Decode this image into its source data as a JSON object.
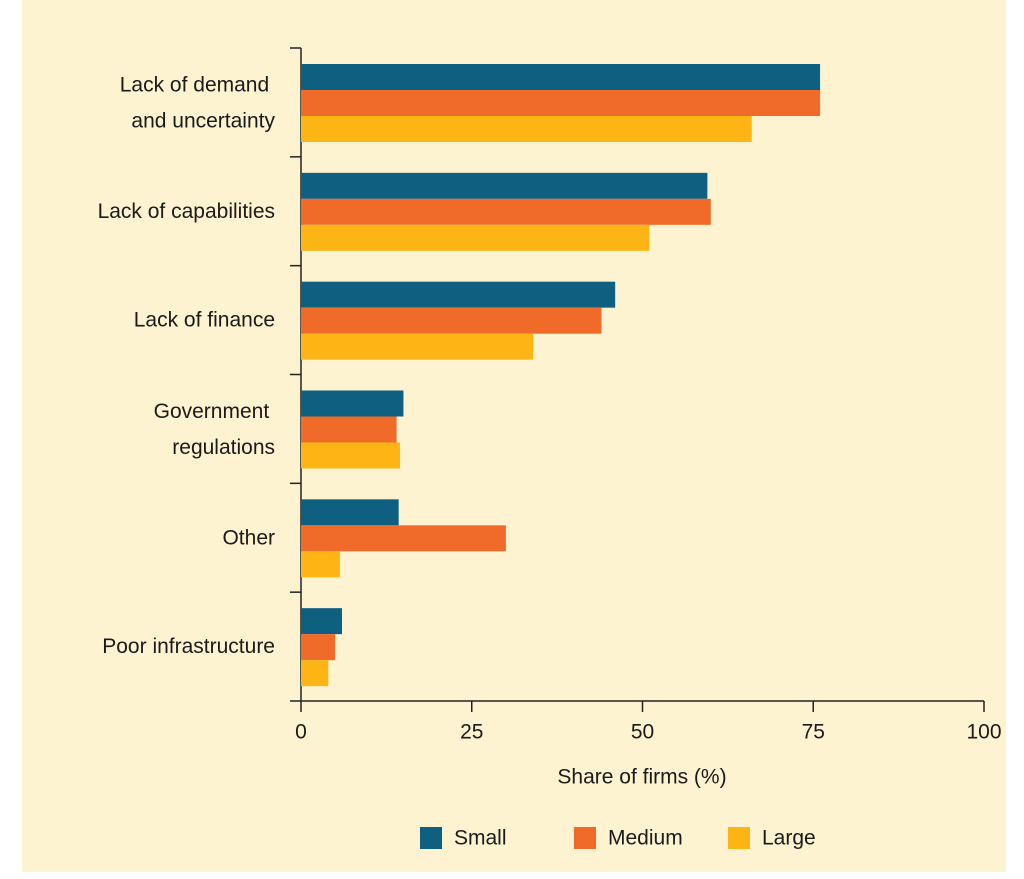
{
  "chart_data": {
    "type": "bar",
    "orientation": "horizontal",
    "categories": [
      "Lack of demand and uncertainty",
      "Lack of capabilities",
      "Lack of finance",
      "Government regulations",
      "Other",
      "Poor infrastructure"
    ],
    "series": [
      {
        "name": "Small",
        "color": "#0e5f80",
        "values": [
          76,
          59.5,
          46,
          15,
          14.3,
          6
        ]
      },
      {
        "name": "Medium",
        "color": "#f06b2a",
        "values": [
          76,
          60,
          44,
          14,
          30,
          5
        ]
      },
      {
        "name": "Large",
        "color": "#fdb515",
        "values": [
          66,
          51,
          34,
          14.5,
          5.7,
          4
        ]
      }
    ],
    "xlabel": "Share of firms (%)",
    "xlim": [
      0,
      100
    ],
    "xticks": [
      0,
      25,
      50,
      75,
      100
    ],
    "grid": false,
    "legend": "bottom"
  }
}
